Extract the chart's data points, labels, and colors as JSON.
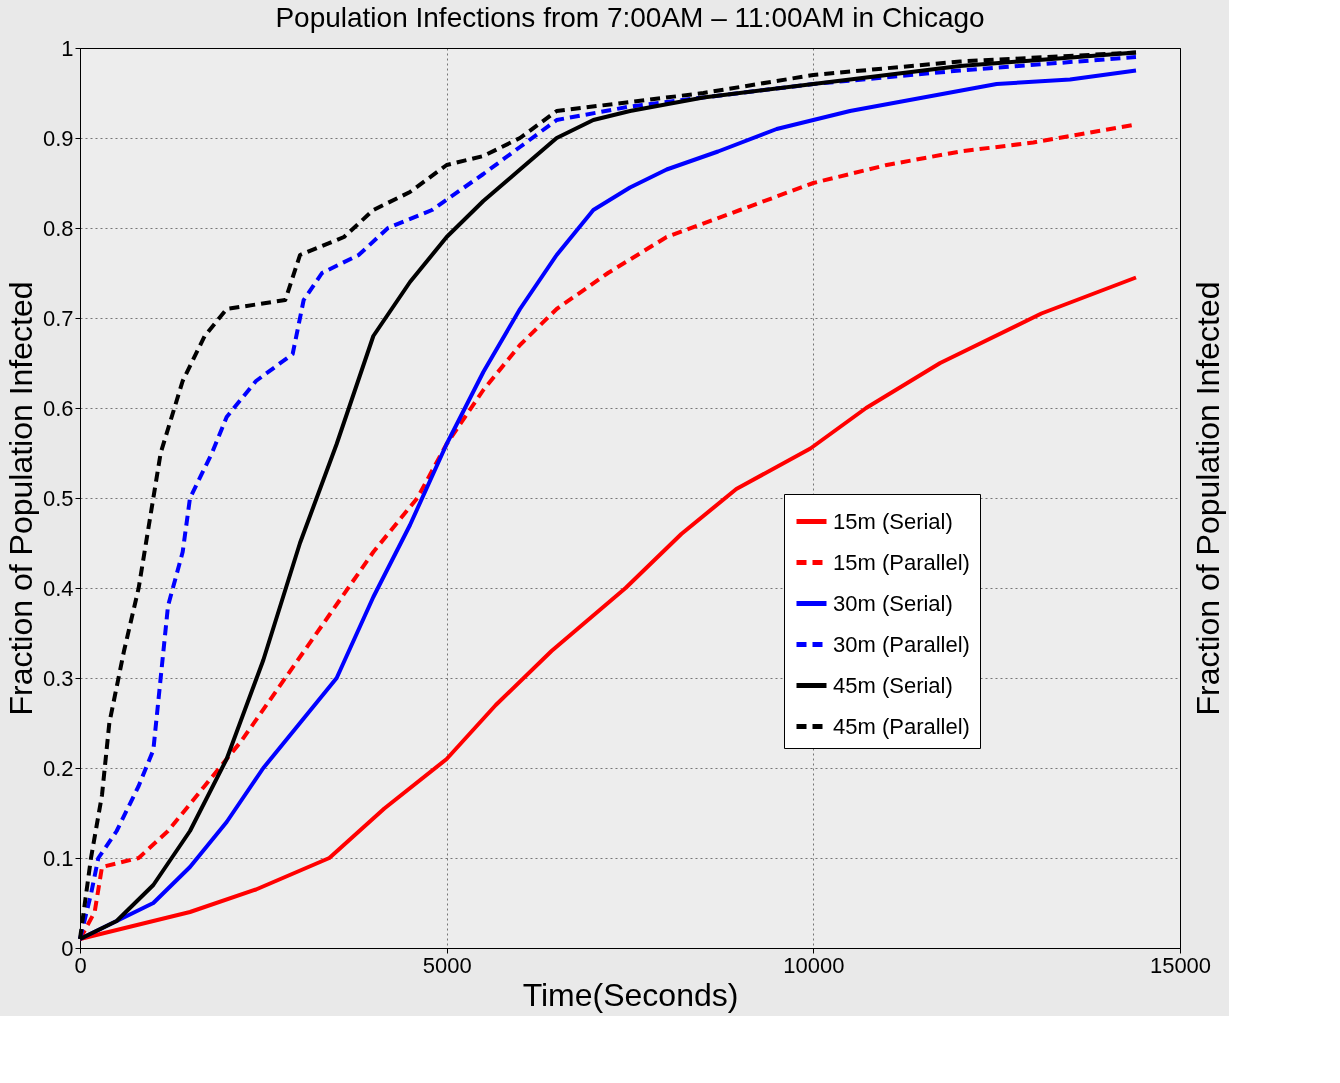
{
  "chart_data": {
    "type": "line",
    "title": "Population Infections from 7:00AM – 11:00AM in Chicago",
    "xlabel": "Time(Seconds)",
    "ylabel": "Fraction of Population Infected",
    "y2label": "Fraction of Population Infected",
    "xlim": [
      0,
      15000
    ],
    "xticks": [
      0,
      5000,
      10000,
      15000
    ],
    "ylim": [
      0,
      1
    ],
    "yticks": [
      0,
      0.1,
      0.2,
      0.3,
      0.4,
      0.5,
      0.6,
      0.7,
      0.8,
      0.9,
      1
    ],
    "grid": true,
    "legend": "bottom right",
    "marker": "none",
    "series": [
      {
        "name": "15m (Serial)",
        "color": "#ff0000",
        "line_style": "solid",
        "x": [
          0,
          1000,
          1500,
          2400,
          3400,
          4150,
          5000,
          5670,
          6430,
          7440,
          8200,
          8950,
          9960,
          10720,
          11730,
          13110,
          14400
        ],
        "values": [
          0.01,
          0.03,
          0.04,
          0.065,
          0.1,
          0.155,
          0.21,
          0.27,
          0.33,
          0.4,
          0.46,
          0.51,
          0.555,
          0.6,
          0.65,
          0.705,
          0.745
        ]
      },
      {
        "name": "15m (Parallel)",
        "color": "#ff0000",
        "line_style": "dashed",
        "x": [
          0,
          200,
          300,
          800,
          1200,
          1700,
          2200,
          2800,
          3400,
          4000,
          4600,
          5000,
          5500,
          6000,
          6500,
          7200,
          8000,
          9000,
          10000,
          11000,
          12000,
          13000,
          14400
        ],
        "values": [
          0.01,
          0.04,
          0.09,
          0.1,
          0.13,
          0.18,
          0.23,
          0.3,
          0.37,
          0.44,
          0.5,
          0.56,
          0.62,
          0.67,
          0.71,
          0.75,
          0.79,
          0.82,
          0.85,
          0.87,
          0.885,
          0.895,
          0.915
        ]
      },
      {
        "name": "30m (Serial)",
        "color": "#0000ff",
        "line_style": "solid",
        "x": [
          0,
          1000,
          1500,
          2000,
          2500,
          3000,
          3500,
          4000,
          4500,
          5000,
          5500,
          6000,
          6500,
          7000,
          7500,
          8000,
          8700,
          9500,
          10500,
          11500,
          12500,
          13500,
          14400
        ],
        "values": [
          0.01,
          0.05,
          0.09,
          0.14,
          0.2,
          0.25,
          0.3,
          0.39,
          0.47,
          0.56,
          0.64,
          0.71,
          0.77,
          0.82,
          0.845,
          0.865,
          0.885,
          0.91,
          0.93,
          0.945,
          0.96,
          0.965,
          0.975
        ]
      },
      {
        "name": "30m (Parallel)",
        "color": "#0000ff",
        "line_style": "dashed",
        "x": [
          0,
          150,
          250,
          500,
          800,
          1000,
          1100,
          1200,
          1400,
          1500,
          1800,
          2000,
          2400,
          2900,
          3050,
          3300,
          3800,
          4200,
          4800,
          5500,
          6000,
          6500,
          7500,
          8500,
          10000,
          12000,
          14400
        ],
        "values": [
          0.01,
          0.06,
          0.1,
          0.13,
          0.18,
          0.22,
          0.3,
          0.38,
          0.44,
          0.5,
          0.55,
          0.59,
          0.63,
          0.66,
          0.72,
          0.75,
          0.77,
          0.8,
          0.82,
          0.86,
          0.89,
          0.92,
          0.935,
          0.945,
          0.96,
          0.975,
          0.99
        ]
      },
      {
        "name": "45m (Serial)",
        "color": "#000000",
        "line_style": "solid",
        "x": [
          0,
          500,
          1000,
          1500,
          2000,
          2500,
          3000,
          3500,
          4000,
          4500,
          5000,
          5500,
          6000,
          6500,
          7000,
          7500,
          8500,
          10000,
          12000,
          14400
        ],
        "values": [
          0.01,
          0.03,
          0.07,
          0.13,
          0.21,
          0.32,
          0.45,
          0.56,
          0.68,
          0.74,
          0.79,
          0.83,
          0.865,
          0.9,
          0.92,
          0.93,
          0.945,
          0.96,
          0.98,
          0.995
        ]
      },
      {
        "name": "45m (Parallel)",
        "color": "#000000",
        "line_style": "dashed",
        "x": [
          0,
          150,
          300,
          400,
          600,
          800,
          900,
          1100,
          1400,
          1700,
          2000,
          2800,
          3000,
          3600,
          4000,
          4500,
          5000,
          5500,
          6000,
          6500,
          7500,
          8500,
          10000,
          12000,
          14400
        ],
        "values": [
          0.01,
          0.1,
          0.17,
          0.25,
          0.33,
          0.4,
          0.45,
          0.55,
          0.63,
          0.68,
          0.71,
          0.72,
          0.77,
          0.79,
          0.82,
          0.84,
          0.87,
          0.88,
          0.9,
          0.93,
          0.94,
          0.95,
          0.97,
          0.985,
          0.995
        ]
      }
    ]
  }
}
